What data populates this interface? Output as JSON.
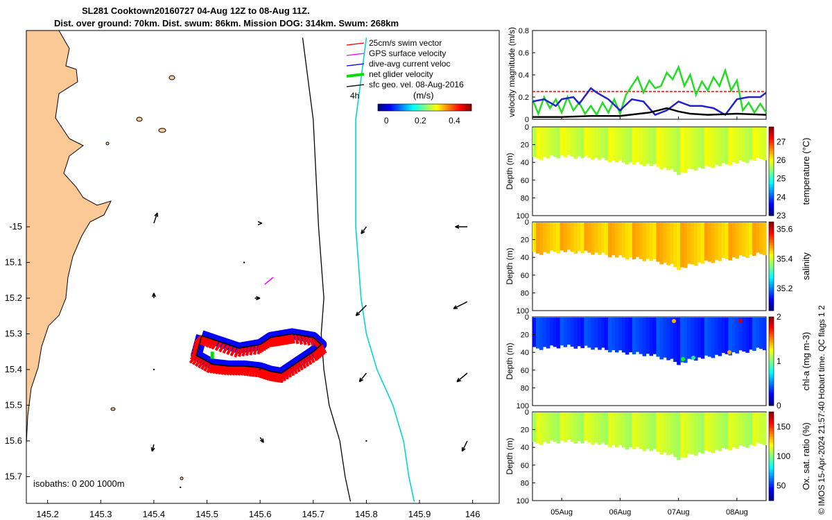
{
  "header": {
    "title_line1": "SL281 Cooktown20160727 04-Aug 12Z to 08-Aug 11Z.",
    "title_line2": "Dist. over ground: 70km. Dist. swum: 86km. Mission DOG: 314km. Swum: 268km"
  },
  "credit": "© IMOS 15-Apr-2024 21:57:40 Hobart time. QC flags 1  2",
  "colors": {
    "land": "#fbc996",
    "glider_track": "#0000ff",
    "swim_vector": "#ff0000",
    "gps": "#ff00ff",
    "net_velocity": "#00dd00",
    "isobath_200": "#00d5d5"
  },
  "chart_data": [
    {
      "type": "map",
      "name": "track-map",
      "xlim": [
        145.16,
        146.05
      ],
      "ylim": [
        -15.775,
        -14.45
      ],
      "xticks": [
        "145.2",
        "145.3",
        "145.4",
        "145.5",
        "145.6",
        "145.7",
        "145.8",
        "145.9",
        "146"
      ],
      "yticks": [
        "-15",
        "15.1",
        "15.2",
        "15.3",
        "15.4",
        "15.5",
        "15.6",
        "15.7"
      ],
      "legend": {
        "entries": [
          "25cm/s swim vector",
          "GPS surface velocity",
          "dive-avg current veloc",
          "net glider velocity",
          "sfc geo. vel. 08-Aug-2016"
        ],
        "ref_label": "4h",
        "colorbar_label": "(m/s)",
        "colorbar_ticks": [
          "0",
          "0.2",
          "0.4"
        ],
        "colorbar_range": [
          -0.05,
          0.5
        ]
      },
      "isobaths_label": "isobaths: 0   200   1000m",
      "isobath_1000_lon": [
        145.68,
        145.7,
        145.71,
        145.72,
        145.715,
        145.72,
        145.73,
        145.75,
        145.76,
        145.77
      ],
      "isobath_200_lon": [
        145.8,
        145.78,
        145.78,
        145.79,
        145.8,
        145.82,
        145.85,
        145.87,
        145.88,
        145.89
      ],
      "isobath_lat": [
        -14.47,
        -14.7,
        -15.0,
        -15.2,
        -15.3,
        -15.4,
        -15.5,
        -15.6,
        -15.7,
        -15.77
      ],
      "glider_track": {
        "lon": [
          145.49,
          145.52,
          145.56,
          145.6,
          145.62,
          145.64,
          145.66,
          145.7,
          145.715,
          145.7,
          145.67,
          145.64,
          145.62,
          145.6,
          145.57,
          145.54,
          145.51,
          145.48,
          145.49
        ],
        "lat": [
          -15.305,
          -15.32,
          -15.34,
          -15.33,
          -15.31,
          -15.305,
          -15.3,
          -15.31,
          -15.33,
          -15.35,
          -15.38,
          -15.41,
          -15.405,
          -15.395,
          -15.39,
          -15.39,
          -15.385,
          -15.36,
          -15.305
        ]
      },
      "geo_vectors": {
        "lon": [
          145.4,
          145.6,
          145.8,
          145.99,
          145.4,
          145.59,
          145.8,
          145.99,
          145.4,
          145.6,
          145.8,
          145.99,
          145.4,
          145.6,
          145.8,
          145.99,
          145.45,
          145.57
        ],
        "lat": [
          -14.99,
          -14.99,
          -15.22,
          -15.21,
          -15.2,
          -15.2,
          -15.41,
          -15.41,
          -15.4,
          -15.4,
          -15.6,
          -15.6,
          -15.61,
          -15.59,
          -15.0,
          -15.0,
          -15.73,
          -15.1
        ],
        "u": [
          0.02,
          0.01,
          -0.06,
          -0.08,
          0.0,
          0.03,
          -0.04,
          -0.06,
          0.0,
          0.0,
          0.0,
          -0.03,
          -0.01,
          0.02,
          -0.03,
          -0.07,
          0.0,
          0.0
        ],
        "v": [
          0.06,
          0.0,
          -0.06,
          -0.04,
          0.03,
          0.0,
          -0.05,
          -0.05,
          0.0,
          0.0,
          0.0,
          -0.06,
          -0.04,
          -0.03,
          -0.04,
          0.0,
          0.0,
          0.0
        ]
      }
    },
    {
      "type": "line",
      "name": "velocity-magnitude",
      "ylabel": "velocity magnitude (m/s)",
      "ylim": [
        0,
        0.8
      ],
      "yticks": [
        "0",
        "0.2",
        "0.4",
        "0.6",
        "0.8"
      ],
      "xlim": [
        4.5,
        8.5
      ],
      "xticks": [
        "05Aug",
        "06Aug",
        "07Aug",
        "08Aug"
      ],
      "xtick_values": [
        5,
        6,
        7,
        8
      ],
      "series": [
        {
          "name": "swim speed 25cm/s",
          "color": "#ff0000",
          "dashed": true,
          "x": [
            4.5,
            8.5
          ],
          "y": [
            0.25,
            0.25
          ]
        },
        {
          "name": "net glider velocity",
          "color": "#22dd22",
          "x": [
            4.5,
            4.6,
            4.7,
            4.8,
            4.9,
            5.0,
            5.1,
            5.2,
            5.3,
            5.4,
            5.5,
            5.6,
            5.7,
            5.8,
            5.9,
            6.0,
            6.1,
            6.2,
            6.3,
            6.4,
            6.5,
            6.6,
            6.7,
            6.8,
            6.9,
            7.0,
            7.1,
            7.2,
            7.3,
            7.4,
            7.5,
            7.6,
            7.7,
            7.8,
            7.9,
            8.0,
            8.1,
            8.2,
            8.3,
            8.4,
            8.5
          ],
          "y": [
            0.18,
            0.05,
            0.2,
            0.1,
            0.18,
            0.06,
            0.2,
            0.08,
            0.15,
            0.05,
            0.12,
            0.04,
            0.15,
            0.06,
            0.18,
            0.05,
            0.22,
            0.3,
            0.38,
            0.24,
            0.35,
            0.28,
            0.3,
            0.42,
            0.36,
            0.47,
            0.3,
            0.4,
            0.22,
            0.34,
            0.26,
            0.38,
            0.3,
            0.44,
            0.26,
            0.35,
            0.08,
            0.15,
            0.06,
            0.14,
            0.06
          ]
        },
        {
          "name": "dive-avg current",
          "color": "#2222cc",
          "x": [
            4.5,
            4.7,
            4.9,
            5.0,
            5.2,
            5.3,
            5.5,
            5.6,
            5.8,
            6.0,
            6.2,
            6.4,
            6.6,
            6.8,
            7.0,
            7.2,
            7.4,
            7.6,
            7.8,
            8.0,
            8.2,
            8.4,
            8.5
          ],
          "y": [
            0.16,
            0.18,
            0.12,
            0.18,
            0.2,
            0.14,
            0.28,
            0.24,
            0.18,
            0.08,
            0.18,
            0.16,
            0.04,
            0.08,
            0.16,
            0.12,
            0.12,
            0.1,
            0.04,
            0.18,
            0.2,
            0.2,
            0.24
          ]
        },
        {
          "name": "sfc geo. vel.",
          "color": "#000000",
          "x": [
            4.5,
            5.0,
            5.5,
            6.0,
            6.5,
            6.8,
            7.0,
            7.2,
            7.5,
            8.0,
            8.5
          ],
          "y": [
            0.02,
            0.02,
            0.03,
            0.03,
            0.06,
            0.1,
            0.07,
            0.05,
            0.04,
            0.05,
            0.04
          ]
        }
      ]
    },
    {
      "type": "heatmap",
      "name": "temperature-section",
      "cbar_label": "temperature (°C)",
      "cbar_ticks": [
        "23",
        "24",
        "25",
        "26",
        "27"
      ],
      "cbar_range": [
        23,
        27.8
      ],
      "value": 25.8,
      "ylabel": "Depth (m)",
      "yticks": [
        "0",
        "20",
        "40",
        "60",
        "80",
        "100"
      ],
      "ylim": [
        0,
        100
      ],
      "depth_x": [
        4.5,
        5.0,
        5.5,
        6.0,
        6.5,
        6.8,
        7.0,
        7.2,
        7.5,
        8.0,
        8.5
      ],
      "max_depth": [
        36,
        33,
        35,
        40,
        43,
        48,
        53,
        48,
        45,
        40,
        35
      ]
    },
    {
      "type": "heatmap",
      "name": "salinity-section",
      "cbar_label": "salinity",
      "cbar_ticks": [
        "35.2",
        "35.4",
        "35.6"
      ],
      "cbar_range": [
        35.05,
        35.65
      ],
      "value": 35.46,
      "ylabel": "Depth (m)",
      "yticks": [
        "0",
        "20",
        "40",
        "60",
        "80",
        "100"
      ],
      "ylim": [
        0,
        100
      ],
      "depth_x": [
        4.5,
        5.0,
        5.5,
        6.0,
        6.5,
        6.8,
        7.0,
        7.2,
        7.5,
        8.0,
        8.5
      ],
      "max_depth": [
        36,
        33,
        35,
        40,
        43,
        48,
        53,
        48,
        45,
        40,
        35
      ]
    },
    {
      "type": "heatmap",
      "name": "chl-a-section",
      "cbar_label": "chl-a (mg m-3)",
      "cbar_ticks": [
        "0",
        "1",
        "2"
      ],
      "cbar_range": [
        0,
        2
      ],
      "value": 0.35,
      "ylabel": "Depth (m)",
      "yticks": [
        "0",
        "20",
        "40",
        "60",
        "80",
        "100"
      ],
      "ylim": [
        0,
        100
      ],
      "depth_x": [
        4.5,
        5.0,
        5.5,
        6.0,
        6.5,
        6.8,
        7.0,
        7.2,
        7.5,
        8.0,
        8.5
      ],
      "max_depth": [
        36,
        33,
        35,
        40,
        43,
        48,
        53,
        48,
        45,
        40,
        35
      ]
    },
    {
      "type": "heatmap",
      "name": "oxygen-section",
      "cbar_label": "Ox. sat. ratio (%)",
      "cbar_ticks": [
        "50",
        "100",
        "150"
      ],
      "cbar_range": [
        25,
        175
      ],
      "value": 110,
      "ylabel": "Depth (m)",
      "yticks": [
        "0",
        "20",
        "40",
        "60",
        "80",
        "100"
      ],
      "ylim": [
        0,
        100
      ],
      "depth_x": [
        4.5,
        5.0,
        5.5,
        6.0,
        6.5,
        6.8,
        7.0,
        7.2,
        7.5,
        8.0,
        8.5
      ],
      "max_depth": [
        36,
        33,
        35,
        40,
        43,
        48,
        53,
        48,
        45,
        40,
        35
      ]
    }
  ]
}
